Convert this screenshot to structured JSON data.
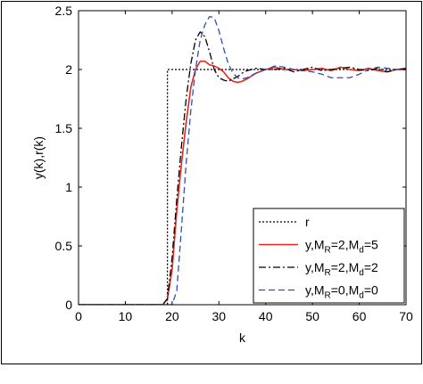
{
  "chart_data": {
    "type": "line",
    "title": "",
    "xlabel": "k",
    "ylabel": "y(k),r(k)",
    "xlim": [
      0,
      70
    ],
    "ylim": [
      0,
      2.5
    ],
    "xticks": [
      0,
      10,
      20,
      30,
      40,
      50,
      60,
      70
    ],
    "xtick_labels": [
      "0",
      "10",
      "20",
      "30",
      "40",
      "50",
      "60",
      "70"
    ],
    "yticks": [
      0,
      0.5,
      1,
      1.5,
      2,
      2.5
    ],
    "ytick_labels": [
      "0",
      "0.5",
      "1",
      "1.5",
      "2",
      "2.5"
    ],
    "grid": false,
    "legend_position": "bottom-right",
    "series": [
      {
        "name": "r",
        "color": "#000000",
        "dash": "dotted",
        "x": [
          0,
          19,
          19,
          70
        ],
        "y": [
          0,
          0,
          2,
          2
        ]
      },
      {
        "name": "y,M_R=2,M_d=5",
        "legend": {
          "base": "y,M",
          "sub1": "R",
          "mid": "=2,M",
          "sub2": "d",
          "tail": "=5"
        },
        "color": "#e8261c",
        "dash": "solid",
        "x": [
          0,
          18,
          19,
          20,
          21,
          22,
          23,
          24,
          25,
          26,
          27,
          28,
          29,
          30,
          31,
          32,
          33,
          34,
          35,
          36,
          38,
          40,
          42,
          44,
          46,
          48,
          50,
          52,
          54,
          56,
          58,
          60,
          62,
          64,
          66,
          68,
          70
        ],
        "y": [
          0,
          0,
          0.05,
          0.3,
          0.8,
          1.2,
          1.55,
          1.85,
          2.0,
          2.07,
          2.07,
          2.04,
          2.03,
          2.01,
          1.98,
          1.93,
          1.9,
          1.89,
          1.9,
          1.92,
          1.97,
          2.0,
          2.02,
          2.0,
          2.0,
          1.99,
          2.0,
          2.01,
          1.99,
          2.02,
          2.0,
          1.99,
          2.01,
          1.99,
          1.98,
          2.0,
          2.0
        ]
      },
      {
        "name": "y,M_R=2,M_d=2",
        "legend": {
          "base": "y,M",
          "sub1": "R",
          "mid": "=2,M",
          "sub2": "d",
          "tail": "=2"
        },
        "color": "#000000",
        "dash": "dashdot",
        "x": [
          0,
          18,
          19,
          20,
          21,
          22,
          23,
          24,
          25,
          26,
          27,
          28,
          29,
          30,
          31,
          32,
          33,
          34,
          35,
          36,
          38,
          40,
          42,
          44,
          46,
          48,
          50,
          52,
          54,
          56,
          58,
          60,
          62,
          64,
          66,
          68,
          70
        ],
        "y": [
          0,
          0,
          0.05,
          0.4,
          0.9,
          1.35,
          1.75,
          2.05,
          2.25,
          2.32,
          2.28,
          2.15,
          2.0,
          1.93,
          1.91,
          1.9,
          1.92,
          1.94,
          1.97,
          1.99,
          2.01,
          2.0,
          2.0,
          2.01,
          1.98,
          2.0,
          2.02,
          1.99,
          2.0,
          2.01,
          2.02,
          2.0,
          1.99,
          2.01,
          1.98,
          2.0,
          2.01
        ]
      },
      {
        "name": "y,M_R=0,M_d=0",
        "legend": {
          "base": "y,M",
          "sub1": "R",
          "mid": "=0,M",
          "sub2": "d",
          "tail": "=0"
        },
        "color": "#2f4fb8",
        "dash": "dashed",
        "x": [
          0,
          20,
          21,
          22,
          23,
          24,
          25,
          26,
          27,
          28,
          29,
          30,
          31,
          32,
          33,
          34,
          35,
          36,
          38,
          40,
          42,
          44,
          46,
          48,
          50,
          52,
          54,
          56,
          58,
          60,
          62,
          64,
          66,
          68,
          70
        ],
        "y": [
          0,
          0,
          0.12,
          0.65,
          1.2,
          1.65,
          2.0,
          2.25,
          2.38,
          2.45,
          2.44,
          2.33,
          2.18,
          2.05,
          1.97,
          1.93,
          1.92,
          1.93,
          1.97,
          2.0,
          2.03,
          2.02,
          2.0,
          1.99,
          1.98,
          1.96,
          1.93,
          1.93,
          1.93,
          1.96,
          2.0,
          2.02,
          2.01,
          2.0,
          2.0
        ]
      }
    ]
  }
}
